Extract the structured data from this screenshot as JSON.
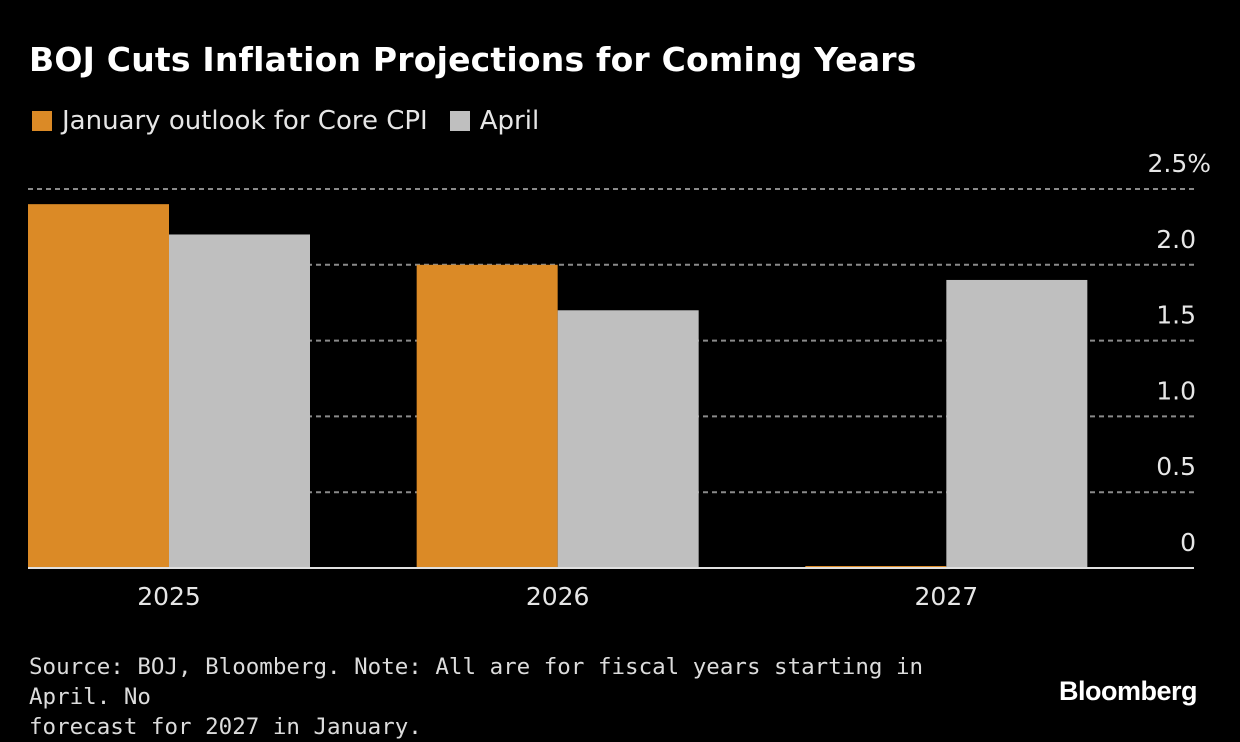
{
  "title": "BOJ Cuts Inflation Projections for Coming Years",
  "legend": [
    {
      "label": "January outlook for Core CPI",
      "color": "#DB8A26"
    },
    {
      "label": "April",
      "color": "#BFBFBF"
    }
  ],
  "footer": {
    "source_line1": "Source: BOJ, Bloomberg. Note: All are for fiscal years starting in April. No",
    "source_line2": "forecast for 2027 in January."
  },
  "logo": "Bloomberg",
  "chart_data": {
    "type": "bar",
    "title": "BOJ Cuts Inflation Projections for Coming Years",
    "xlabel": "",
    "ylabel": "",
    "categories": [
      "2025",
      "2026",
      "2027"
    ],
    "series": [
      {
        "name": "January outlook for Core CPI",
        "color": "#DB8A26",
        "values": [
          2.4,
          2.0,
          0
        ]
      },
      {
        "name": "April",
        "color": "#BFBFBF",
        "values": [
          2.2,
          1.7,
          1.9
        ]
      }
    ],
    "ylim": [
      0,
      2.5
    ],
    "yticks": [
      0,
      0.5,
      1.0,
      1.5,
      2.0,
      2.5
    ],
    "ytick_labels": [
      "0",
      "0.5",
      "1.0",
      "1.5",
      "2.0",
      "2.5%"
    ],
    "y_axis_side": "right",
    "grid": true,
    "legend_position": "top-left"
  }
}
